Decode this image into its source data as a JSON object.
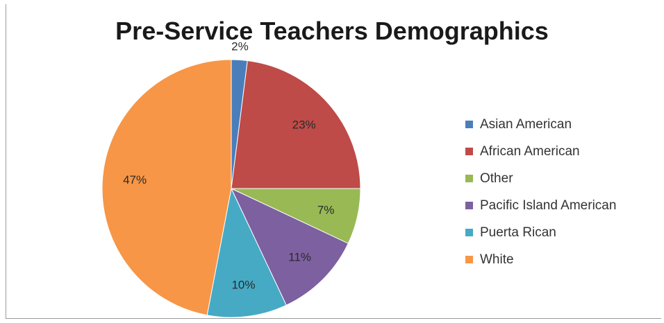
{
  "chart_data": {
    "type": "pie",
    "title": "Pre-Service Teachers Demographics",
    "categories": [
      "Asian American",
      "African American",
      "Other",
      "Pacific Island American",
      "Puerta Rican",
      "White"
    ],
    "values": [
      2,
      23,
      7,
      11,
      10,
      47
    ],
    "data_labels": [
      "2%",
      "23%",
      "7%",
      "11%",
      "10%",
      "47%"
    ],
    "colors": [
      "#4a7ebb",
      "#be4b48",
      "#98b954",
      "#7d60a0",
      "#46aac5",
      "#f79646"
    ],
    "legend_position": "right"
  }
}
